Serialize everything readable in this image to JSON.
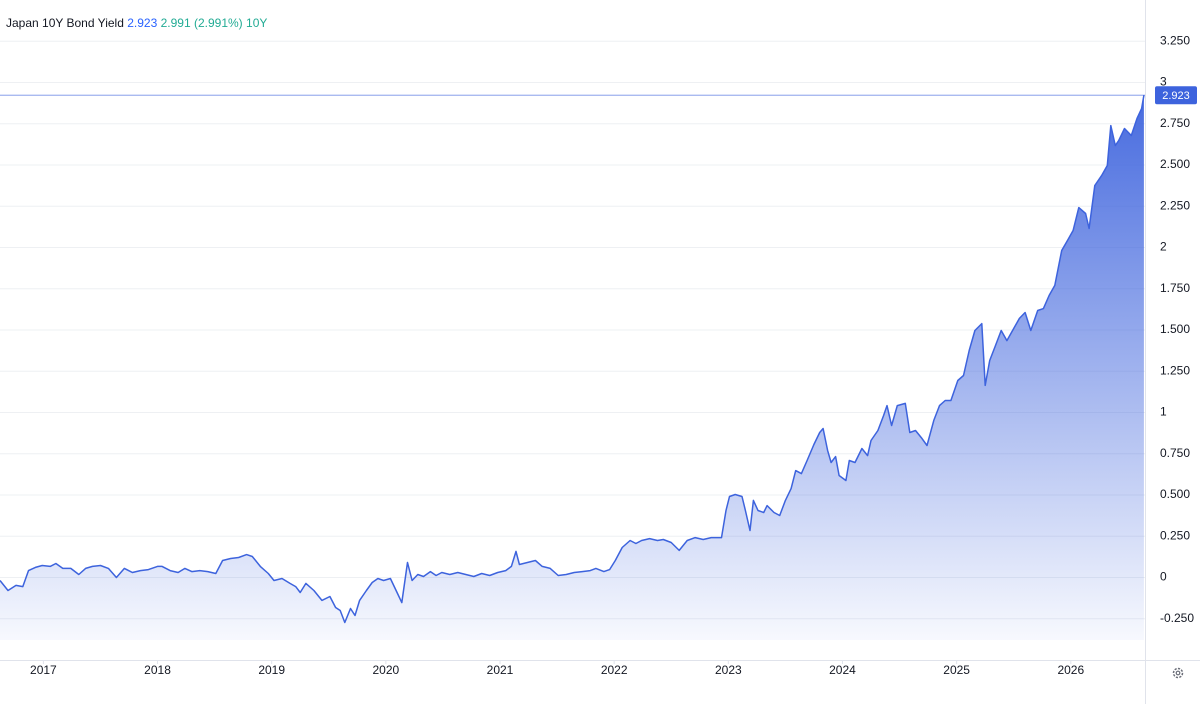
{
  "chart_data": {
    "type": "area",
    "header": {
      "name": "Japan 10Y Bond Yield",
      "value": 2.923,
      "change": 2.991,
      "change_percent": {
        "value": 2.991,
        "label": "(2.991%)"
      },
      "interval": "10Y"
    },
    "last_value": 2.923,
    "color": "#3d63dd",
    "grid": true,
    "xlim": [
      2016.62,
      2026.65
    ],
    "xticks": [
      2017,
      2018,
      2019,
      2020,
      2021,
      2022,
      2023,
      2024,
      2025,
      2026
    ],
    "ylim": [
      -0.5,
      3.5
    ],
    "yticks": [
      {
        "value": -0.25,
        "label": "-0.250"
      },
      0,
      {
        "value": 0.25,
        "label": "0.250"
      },
      {
        "value": 0.5,
        "label": "0.500"
      },
      {
        "value": 0.75,
        "label": "0.750"
      },
      1,
      {
        "value": 1.25,
        "label": "1.250"
      },
      {
        "value": 1.5,
        "label": "1.500"
      },
      {
        "value": 1.75,
        "label": "1.750"
      },
      2,
      {
        "value": 2.25,
        "label": "2.250"
      },
      {
        "value": 2.5,
        "label": "2.500"
      },
      {
        "value": 2.75,
        "label": "2.750"
      },
      3,
      {
        "value": 3.25,
        "label": "3.250"
      }
    ],
    "x": [
      2016.62,
      2016.69,
      2016.76,
      2016.82,
      2016.87,
      2016.93,
      2016.99,
      2017.06,
      2017.11,
      2017.17,
      2017.24,
      2017.31,
      2017.37,
      2017.43,
      2017.5,
      2017.57,
      2017.64,
      2017.71,
      2017.78,
      2017.85,
      2017.92,
      2018.0,
      2018.04,
      2018.11,
      2018.18,
      2018.24,
      2018.3,
      2018.37,
      2018.44,
      2018.51,
      2018.57,
      2018.64,
      2018.71,
      2018.78,
      2018.83,
      2018.9,
      2018.97,
      2019.02,
      2019.09,
      2019.16,
      2019.21,
      2019.25,
      2019.3,
      2019.37,
      2019.44,
      2019.51,
      2019.56,
      2019.6,
      2019.64,
      2019.69,
      2019.73,
      2019.77,
      2019.83,
      2019.88,
      2019.93,
      2019.98,
      2020.04,
      2020.09,
      2020.14,
      2020.19,
      2020.23,
      2020.28,
      2020.33,
      2020.39,
      2020.44,
      2020.49,
      2020.56,
      2020.63,
      2020.7,
      2020.77,
      2020.84,
      2020.91,
      2020.98,
      2021.05,
      2021.1,
      2021.14,
      2021.17,
      2021.24,
      2021.31,
      2021.37,
      2021.44,
      2021.51,
      2021.58,
      2021.65,
      2021.72,
      2021.79,
      2021.84,
      2021.91,
      2021.96,
      2022.01,
      2022.07,
      2022.14,
      2022.19,
      2022.24,
      2022.31,
      2022.38,
      2022.43,
      2022.5,
      2022.57,
      2022.64,
      2022.71,
      2022.78,
      2022.85,
      2022.94,
      2022.98,
      2023.01,
      2023.06,
      2023.12,
      2023.15,
      2023.19,
      2023.22,
      2023.26,
      2023.31,
      2023.34,
      2023.4,
      2023.45,
      2023.5,
      2023.55,
      2023.59,
      2023.64,
      2023.69,
      2023.75,
      2023.8,
      2023.83,
      2023.87,
      2023.9,
      2023.94,
      2023.97,
      2024.03,
      2024.06,
      2024.11,
      2024.17,
      2024.22,
      2024.25,
      2024.31,
      2024.36,
      2024.39,
      2024.43,
      2024.48,
      2024.55,
      2024.59,
      2024.64,
      2024.69,
      2024.74,
      2024.8,
      2024.85,
      2024.9,
      2024.95,
      2025.01,
      2025.06,
      2025.11,
      2025.16,
      2025.22,
      2025.25,
      2025.29,
      2025.34,
      2025.39,
      2025.44,
      2025.5,
      2025.55,
      2025.6,
      2025.65,
      2025.71,
      2025.76,
      2025.81,
      2025.86,
      2025.92,
      2025.97,
      2026.02,
      2026.07,
      2026.13,
      2026.16,
      2026.21,
      2026.27,
      2026.32,
      2026.35,
      2026.39,
      2026.42,
      2026.47,
      2026.53,
      2026.58,
      2026.62,
      2026.64
    ],
    "series": [
      {
        "name": "Japan 10Y Bond Yield",
        "values": [
          -0.018,
          -0.079,
          -0.048,
          -0.055,
          0.042,
          0.061,
          0.073,
          0.067,
          0.085,
          0.055,
          0.055,
          0.018,
          0.055,
          0.067,
          0.073,
          0.055,
          0,
          0.055,
          0.03,
          0.042,
          0.048,
          0.067,
          0.067,
          0.042,
          0.03,
          0.055,
          0.036,
          0.042,
          0.036,
          0.024,
          0.103,
          0.115,
          0.121,
          0.139,
          0.127,
          0.067,
          0.024,
          -0.018,
          -0.006,
          -0.036,
          -0.055,
          -0.091,
          -0.036,
          -0.079,
          -0.139,
          -0.115,
          -0.182,
          -0.2,
          -0.273,
          -0.188,
          -0.23,
          -0.139,
          -0.079,
          -0.03,
          -0.006,
          -0.018,
          -0.006,
          -0.079,
          -0.152,
          0.091,
          -0.018,
          0.018,
          0.006,
          0.036,
          0.012,
          0.03,
          0.018,
          0.03,
          0.018,
          0.006,
          0.024,
          0.012,
          0.03,
          0.042,
          0.067,
          0.158,
          0.079,
          0.091,
          0.103,
          0.067,
          0.055,
          0.012,
          0.018,
          0.03,
          0.036,
          0.042,
          0.055,
          0.036,
          0.048,
          0.103,
          0.182,
          0.224,
          0.206,
          0.224,
          0.236,
          0.224,
          0.23,
          0.212,
          0.164,
          0.224,
          0.242,
          0.23,
          0.242,
          0.242,
          0.406,
          0.491,
          0.503,
          0.491,
          0.406,
          0.285,
          0.467,
          0.406,
          0.394,
          0.436,
          0.394,
          0.376,
          0.467,
          0.539,
          0.648,
          0.63,
          0.709,
          0.806,
          0.879,
          0.903,
          0.77,
          0.697,
          0.733,
          0.618,
          0.588,
          0.709,
          0.697,
          0.782,
          0.739,
          0.83,
          0.891,
          0.982,
          1.042,
          0.921,
          1.042,
          1.055,
          0.879,
          0.891,
          0.848,
          0.8,
          0.952,
          1.042,
          1.073,
          1.073,
          1.194,
          1.224,
          1.376,
          1.497,
          1.539,
          1.164,
          1.315,
          1.406,
          1.497,
          1.436,
          1.509,
          1.57,
          1.606,
          1.497,
          1.618,
          1.63,
          1.709,
          1.77,
          1.982,
          2.042,
          2.103,
          2.242,
          2.206,
          2.115,
          2.376,
          2.436,
          2.497,
          2.739,
          2.618,
          2.648,
          2.721,
          2.679,
          2.782,
          2.842,
          2.923
        ]
      }
    ]
  }
}
